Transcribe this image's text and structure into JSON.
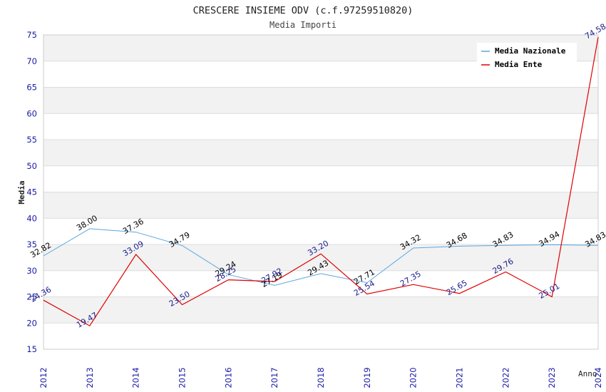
{
  "chart_data": {
    "type": "line",
    "title": "CRESCERE INSIEME ODV (c.f.97259510820)",
    "subtitle": "Media Importi",
    "xlabel": "Anno",
    "ylabel": "Media",
    "ylim": [
      15,
      75
    ],
    "yticks": [
      "15",
      "20",
      "25",
      "30",
      "35",
      "40",
      "45",
      "50",
      "55",
      "60",
      "65",
      "70",
      "75"
    ],
    "categories": [
      "2012",
      "2013",
      "2014",
      "2015",
      "2016",
      "2017",
      "2018",
      "2019",
      "2020",
      "2021",
      "2022",
      "2023",
      "2024"
    ],
    "legend_position": "top-right",
    "series": [
      {
        "name": "Media Nazionale",
        "color": "#5aa7e0",
        "label_color": "#000000",
        "values": [
          32.82,
          38.0,
          37.36,
          34.79,
          29.24,
          27.19,
          29.43,
          27.71,
          34.32,
          34.68,
          34.83,
          34.94,
          34.83
        ],
        "labels": [
          "32.82",
          "38.00",
          "37.36",
          "34.79",
          "29.24",
          "27.19",
          "29.43",
          "27.71",
          "34.32",
          "34.68",
          "34.83",
          "34.94",
          "34.83"
        ]
      },
      {
        "name": "Media Ente",
        "color": "#e00000",
        "label_color": "#1a1a8c",
        "values": [
          24.36,
          19.47,
          33.09,
          23.5,
          28.25,
          27.92,
          33.2,
          25.54,
          27.35,
          25.65,
          29.76,
          25.01,
          74.58
        ],
        "labels": [
          "24.36",
          "19.47",
          "33.09",
          "23.50",
          "28.25",
          "27.92",
          "33.20",
          "25.54",
          "27.35",
          "25.65",
          "29.76",
          "25.01",
          "74.58"
        ]
      }
    ]
  }
}
